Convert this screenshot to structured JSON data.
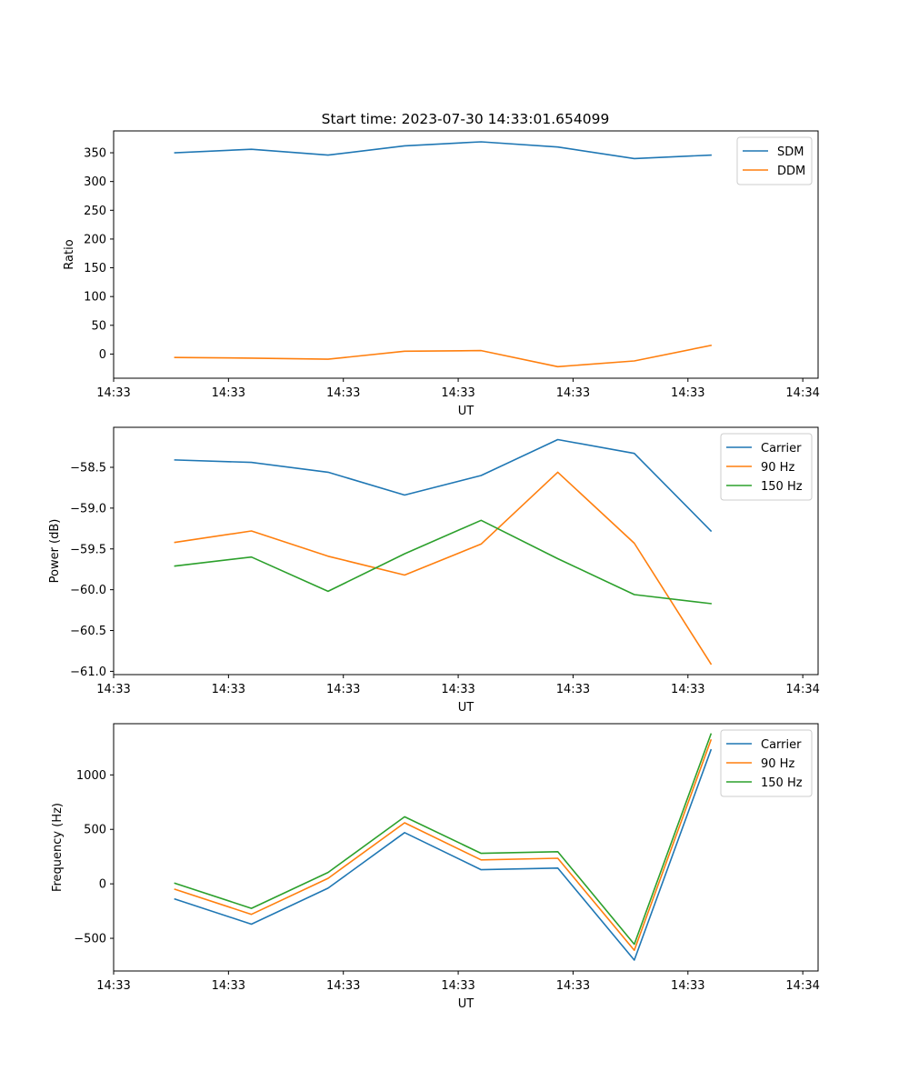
{
  "colors": {
    "blue": "#1f77b4",
    "orange": "#ff7f0e",
    "green": "#2ca02c"
  },
  "chart_data": [
    {
      "type": "line",
      "title": "Start time: 2023-07-30 14:33:01.654099",
      "xlabel": "UT",
      "ylabel": "Ratio",
      "x": [
        1,
        2,
        3,
        4,
        5,
        6,
        7,
        8
      ],
      "xlim": [
        0.2,
        9.4
      ],
      "xtick_positions": [
        0.2,
        1.7,
        3.2,
        4.7,
        6.2,
        7.7,
        9.2
      ],
      "xtick_labels": [
        "14:33",
        "14:33",
        "14:33",
        "14:33",
        "14:33",
        "14:33",
        "14:34"
      ],
      "ylim": [
        -42,
        388
      ],
      "yticks": [
        0,
        50,
        100,
        150,
        200,
        250,
        300,
        350
      ],
      "ytick_labels": [
        "0",
        "50",
        "100",
        "150",
        "200",
        "250",
        "300",
        "350"
      ],
      "legend_position": "top-right",
      "series": [
        {
          "name": "SDM",
          "color": "#1f77b4",
          "values": [
            350,
            356,
            346,
            362,
            369,
            360,
            340,
            346
          ]
        },
        {
          "name": "DDM",
          "color": "#ff7f0e",
          "values": [
            -6,
            -7,
            -9,
            5,
            6,
            -22,
            -12,
            15
          ]
        }
      ]
    },
    {
      "type": "line",
      "title": "",
      "xlabel": "UT",
      "ylabel": "Power (dB)",
      "x": [
        1,
        2,
        3,
        4,
        5,
        6,
        7,
        8
      ],
      "xlim": [
        0.2,
        9.4
      ],
      "xtick_positions": [
        0.2,
        1.7,
        3.2,
        4.7,
        6.2,
        7.7,
        9.2
      ],
      "xtick_labels": [
        "14:33",
        "14:33",
        "14:33",
        "14:33",
        "14:33",
        "14:33",
        "14:34"
      ],
      "ylim": [
        -61.04,
        -58.01
      ],
      "yticks": [
        -61.0,
        -60.5,
        -60.0,
        -59.5,
        -59.0,
        -58.5
      ],
      "ytick_labels": [
        "−61.0",
        "−60.5",
        "−60.0",
        "−59.5",
        "−59.0",
        "−58.5"
      ],
      "legend_position": "top-right",
      "series": [
        {
          "name": "Carrier",
          "color": "#1f77b4",
          "values": [
            -58.41,
            -58.44,
            -58.56,
            -58.84,
            -58.6,
            -58.16,
            -58.33,
            -59.28
          ]
        },
        {
          "name": "90 Hz",
          "color": "#ff7f0e",
          "values": [
            -59.42,
            -59.28,
            -59.59,
            -59.82,
            -59.44,
            -58.56,
            -59.43,
            -60.91
          ]
        },
        {
          "name": "150 Hz",
          "color": "#2ca02c",
          "values": [
            -59.71,
            -59.6,
            -60.02,
            -59.56,
            -59.15,
            -59.62,
            -60.06,
            -60.17
          ]
        }
      ]
    },
    {
      "type": "line",
      "title": "",
      "xlabel": "UT",
      "ylabel": "Frequency (Hz)",
      "x": [
        1,
        2,
        3,
        4,
        5,
        6,
        7,
        8
      ],
      "xlim": [
        0.2,
        9.4
      ],
      "xtick_positions": [
        0.2,
        1.7,
        3.2,
        4.7,
        6.2,
        7.7,
        9.2
      ],
      "xtick_labels": [
        "14:33",
        "14:33",
        "14:33",
        "14:33",
        "14:33",
        "14:33",
        "14:34"
      ],
      "ylim": [
        -800,
        1470
      ],
      "yticks": [
        -500,
        0,
        500,
        1000
      ],
      "ytick_labels": [
        "−500",
        "0",
        "500",
        "1000"
      ],
      "legend_position": "top-right",
      "series": [
        {
          "name": "Carrier",
          "color": "#1f77b4",
          "values": [
            -140,
            -370,
            -40,
            470,
            130,
            145,
            -700,
            1230
          ]
        },
        {
          "name": "90 Hz",
          "color": "#ff7f0e",
          "values": [
            -50,
            -280,
            50,
            560,
            220,
            235,
            -610,
            1320
          ]
        },
        {
          "name": "150 Hz",
          "color": "#2ca02c",
          "values": [
            5,
            -225,
            105,
            615,
            280,
            295,
            -555,
            1375
          ]
        }
      ]
    }
  ]
}
